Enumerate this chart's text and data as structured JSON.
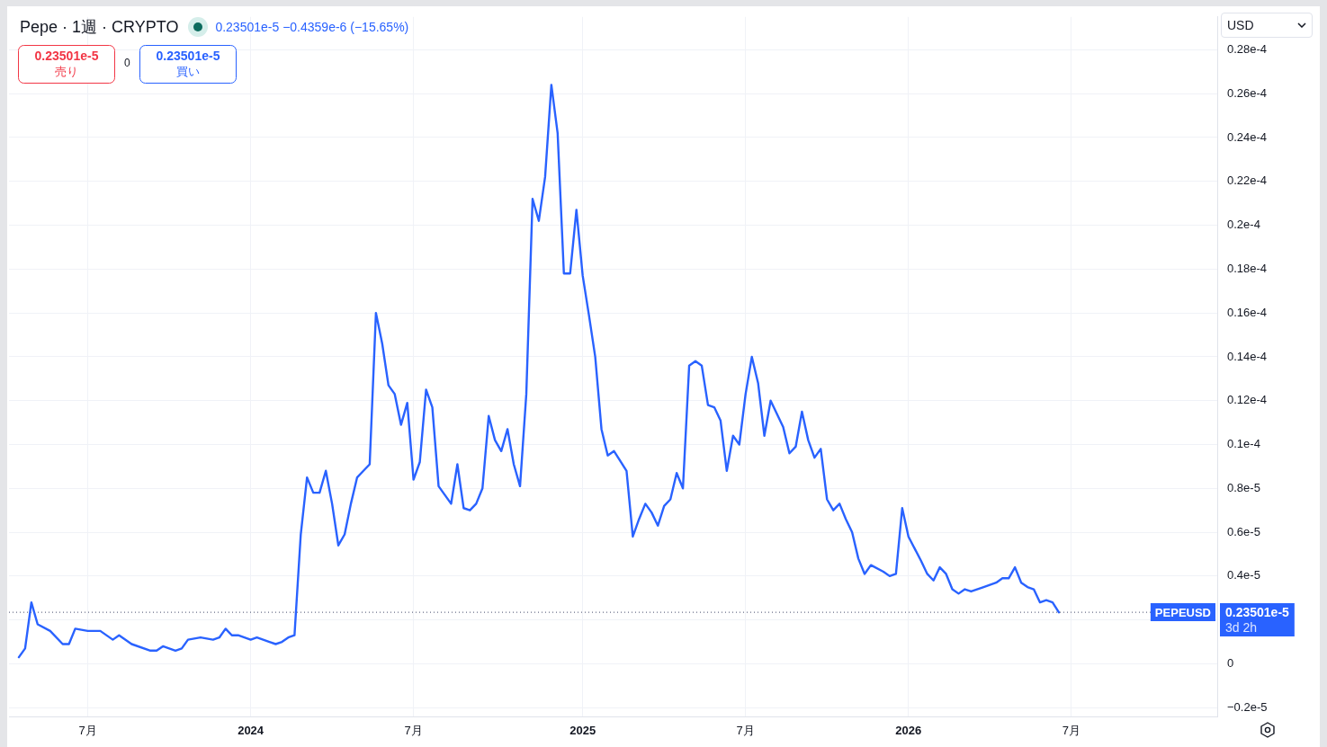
{
  "chart_data": {
    "type": "line",
    "title": "Pepe · 1週 · CRYPTO",
    "subtitle": "0.23501e-5 −0.4359e-6 (−15.65%)",
    "annotations": [
      "0.23501e-5\n売り",
      "0",
      "0.23501e-5\n買い",
      "USD",
      "0.23501e-5\n3d 2h"
    ],
    "x": [
      "2023-04-17",
      "2023-04-24",
      "2023-05-01",
      "2023-05-08",
      "2023-05-22",
      "2023-06-05",
      "2023-06-12",
      "2023-06-19",
      "2023-07-03",
      "2023-07-17",
      "2023-07-31",
      "2023-08-07",
      "2023-08-21",
      "2023-09-11",
      "2023-09-18",
      "2023-09-25",
      "2023-10-09",
      "2023-10-16",
      "2023-10-23",
      "2023-11-06",
      "2023-11-20",
      "2023-11-27",
      "2023-12-04",
      "2023-12-11",
      "2023-12-18",
      "2023-12-25",
      "2024-01-01",
      "2024-01-08",
      "2024-01-15",
      "2024-01-22",
      "2024-01-29",
      "2024-02-05",
      "2024-02-12",
      "2024-02-19",
      "2024-02-26",
      "2024-03-04",
      "2024-03-11",
      "2024-03-18",
      "2024-03-25",
      "2024-04-01",
      "2024-04-08",
      "2024-04-15",
      "2024-04-22",
      "2024-04-29",
      "2024-05-06",
      "2024-05-13",
      "2024-05-20",
      "2024-05-27",
      "2024-06-03",
      "2024-06-10",
      "2024-06-17",
      "2024-06-24",
      "2024-07-01",
      "2024-07-08",
      "2024-07-15",
      "2024-07-22",
      "2024-07-29",
      "2024-08-05",
      "2024-08-12",
      "2024-08-19",
      "2024-08-26",
      "2024-09-02",
      "2024-09-09",
      "2024-09-16",
      "2024-09-23",
      "2024-09-30",
      "2024-10-07",
      "2024-10-14",
      "2024-10-21",
      "2024-10-28",
      "2024-11-04",
      "2024-11-11",
      "2024-11-18",
      "2024-11-25",
      "2024-12-02",
      "2024-12-09",
      "2024-12-16",
      "2024-12-23",
      "2024-12-30",
      "2025-01-06",
      "2025-01-13",
      "2025-01-20",
      "2025-01-27",
      "2025-02-03",
      "2025-02-10",
      "2025-02-24",
      "2025-03-03",
      "2025-03-10",
      "2025-03-17",
      "2025-03-24",
      "2025-03-31",
      "2025-04-07",
      "2025-04-14",
      "2025-04-21",
      "2025-04-28",
      "2025-05-05",
      "2025-05-12",
      "2025-05-19",
      "2025-05-26",
      "2025-06-02",
      "2025-06-09",
      "2025-06-16",
      "2025-06-23",
      "2025-06-30",
      "2025-07-07",
      "2025-07-14",
      "2025-07-21",
      "2025-07-28",
      "2025-08-04",
      "2025-08-18",
      "2025-08-25",
      "2025-09-01",
      "2025-09-08",
      "2025-09-15",
      "2025-09-22",
      "2025-09-29",
      "2025-10-06",
      "2025-10-13",
      "2025-10-20",
      "2025-10-27",
      "2025-11-03",
      "2025-11-10",
      "2025-11-17",
      "2025-11-24",
      "2025-12-08",
      "2025-12-15",
      "2025-12-22",
      "2025-12-29",
      "2026-01-05",
      "2026-01-19",
      "2026-01-26",
      "2026-02-02",
      "2026-02-09",
      "2026-02-16",
      "2026-02-23",
      "2026-03-02",
      "2026-03-09",
      "2026-03-16",
      "2026-03-30",
      "2026-04-13",
      "2026-04-20",
      "2026-04-27",
      "2026-05-04",
      "2026-05-11",
      "2026-05-18",
      "2026-05-25",
      "2026-06-01",
      "2026-06-08",
      "2026-06-15",
      "2026-06-22"
    ],
    "values": [
      3e-07,
      7e-07,
      2.8e-06,
      1.8e-06,
      1.5e-06,
      9e-07,
      9e-07,
      1.6e-06,
      1.5e-06,
      1.5e-06,
      1.1e-06,
      1.3e-06,
      9e-07,
      6e-07,
      6e-07,
      8e-07,
      6e-07,
      7e-07,
      1.1e-06,
      1.2e-06,
      1.1e-06,
      1.2e-06,
      1.6e-06,
      1.3e-06,
      1.3e-06,
      1.2e-06,
      1.1e-06,
      1.2e-06,
      1.1e-06,
      1e-06,
      9e-07,
      1e-06,
      1.2e-06,
      1.3e-06,
      5.9e-06,
      8.5e-06,
      7.8e-06,
      7.8e-06,
      8.8e-06,
      7.3e-06,
      5.4e-06,
      5.9e-06,
      7.3e-06,
      8.5e-06,
      8.8e-06,
      9.1e-06,
      1.6e-05,
      1.46e-05,
      1.27e-05,
      1.23e-05,
      1.09e-05,
      1.19e-05,
      8.4e-06,
      9.2e-06,
      1.25e-05,
      1.17e-05,
      8.1e-06,
      7.7e-06,
      7.3e-06,
      9.1e-06,
      7.1e-06,
      7e-06,
      7.3e-06,
      8e-06,
      1.13e-05,
      1.02e-05,
      9.7e-06,
      1.07e-05,
      9.1e-06,
      8.1e-06,
      1.23e-05,
      2.12e-05,
      2.02e-05,
      2.22e-05,
      2.64e-05,
      2.42e-05,
      1.78e-05,
      1.78e-05,
      2.07e-05,
      1.77e-05,
      1.59e-05,
      1.4e-05,
      1.07e-05,
      9.5e-06,
      9.7e-06,
      8.8e-06,
      5.8e-06,
      6.6e-06,
      7.3e-06,
      6.9e-06,
      6.3e-06,
      7.2e-06,
      7.5e-06,
      8.7e-06,
      8e-06,
      1.36e-05,
      1.38e-05,
      1.36e-05,
      1.18e-05,
      1.17e-05,
      1.11e-05,
      8.8e-06,
      1.04e-05,
      1e-05,
      1.23e-05,
      1.4e-05,
      1.28e-05,
      1.04e-05,
      1.2e-05,
      1.08e-05,
      9.6e-06,
      9.9e-06,
      1.15e-05,
      1.02e-05,
      9.4e-06,
      9.8e-06,
      7.5e-06,
      7e-06,
      7.3e-06,
      6.6e-06,
      6e-06,
      4.8e-06,
      4.1e-06,
      4.5e-06,
      4.2e-06,
      4e-06,
      4.1e-06,
      7.1e-06,
      5.8e-06,
      4.7e-06,
      4.1e-06,
      3.8e-06,
      4.4e-06,
      4.1e-06,
      3.4e-06,
      3.2e-06,
      3.4e-06,
      3.3e-06,
      3.5e-06,
      3.7e-06,
      3.9e-06,
      3.9e-06,
      4.4e-06,
      3.7e-06,
      3.5e-06,
      3.4e-06,
      2.8e-06,
      2.9e-06,
      2.8e-06,
      2.3501e-06
    ],
    "color": "#2962ff",
    "marker": "none",
    "line_style": "solid",
    "grid": true,
    "xlim": [
      "2023-04-06",
      "2026-12-16"
    ],
    "xticks": [
      {
        "value": "2023-07-03",
        "label": "7月"
      },
      {
        "value": "2024-01-01",
        "label": "2024"
      },
      {
        "value": "2024-07-01",
        "label": "7月"
      },
      {
        "value": "2025-01-06",
        "label": "2025"
      },
      {
        "value": "2025-07-07",
        "label": "7月"
      },
      {
        "value": "2026-01-05",
        "label": "2026"
      },
      {
        "value": "2026-07-06",
        "label": "7月"
      }
    ],
    "ylim": [
      -2.4e-06,
      2.95e-05
    ],
    "yticks": [
      {
        "value": -2e-06,
        "label": "−0.2e-5"
      },
      0,
      {
        "value": 2e-06,
        "label": null
      },
      {
        "value": 4e-06,
        "label": "0.4e-5"
      },
      {
        "value": 6e-06,
        "label": "0.6e-5"
      },
      {
        "value": 8e-06,
        "label": "0.8e-5"
      },
      {
        "value": 1e-05,
        "label": "0.1e-4"
      },
      {
        "value": 1.2e-05,
        "label": "0.12e-4"
      },
      {
        "value": 1.4e-05,
        "label": "0.14e-4"
      },
      {
        "value": 1.6e-05,
        "label": "0.16e-4"
      },
      {
        "value": 1.8e-05,
        "label": "0.18e-4"
      },
      {
        "value": 2e-05,
        "label": "0.2e-4"
      },
      {
        "value": 2.2e-05,
        "label": "0.22e-4"
      },
      {
        "value": 2.4e-05,
        "label": "0.24e-4"
      },
      {
        "value": 2.6e-05,
        "label": "0.26e-4"
      },
      {
        "value": 2.8e-05,
        "label": "0.28e-4"
      }
    ],
    "ref_lines": [
      {
        "axis": "y",
        "value": 2.3501e-06,
        "label": "PEPEUSD",
        "color": "#434b6b",
        "line_style": "dotted"
      }
    ]
  }
}
